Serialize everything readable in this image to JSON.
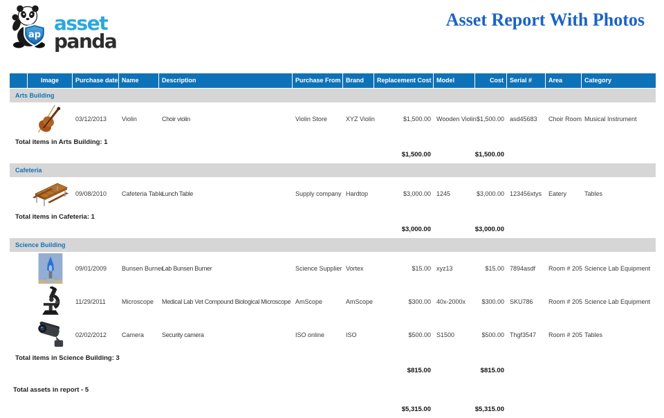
{
  "header": {
    "logo": {
      "word_top": "asset",
      "word_bottom": "panda",
      "badge": "ap"
    },
    "title": "Asset Report With Photos"
  },
  "colors": {
    "header_bar": "#0e72b8",
    "group_bar_bg": "#d6d6d6",
    "group_text": "#1273b8",
    "title_text": "#1b63c5",
    "logo_blue": "#29a8df",
    "logo_dark": "#2d2d2d"
  },
  "table": {
    "columns": [
      {
        "key": "spacer",
        "label": "",
        "align": "left"
      },
      {
        "key": "image",
        "label": "Image",
        "align": "center"
      },
      {
        "key": "purchase_date",
        "label": "Purchase date",
        "align": "left"
      },
      {
        "key": "name",
        "label": "Name",
        "align": "left"
      },
      {
        "key": "description",
        "label": "Description",
        "align": "left"
      },
      {
        "key": "purchase_from",
        "label": "Purchase From",
        "align": "left"
      },
      {
        "key": "brand",
        "label": "Brand",
        "align": "left"
      },
      {
        "key": "replacement_cost",
        "label": "Replacement Cost",
        "align": "right"
      },
      {
        "key": "model",
        "label": "Model",
        "align": "left"
      },
      {
        "key": "cost",
        "label": "Cost",
        "align": "right"
      },
      {
        "key": "serial",
        "label": "Serial #",
        "align": "left"
      },
      {
        "key": "area",
        "label": "Area",
        "align": "left"
      },
      {
        "key": "category",
        "label": "Category",
        "align": "left"
      }
    ],
    "groups": [
      {
        "name": "Arts Building",
        "rows": [
          {
            "image": "violin-photo",
            "purchase_date": "03/12/2013",
            "name": "Violin",
            "description": "Choir violin",
            "purchase_from": "Violin Store",
            "brand": "XYZ Violin",
            "replacement_cost": "$1,500.00",
            "model": "Wooden Violin",
            "cost": "$1,500.00",
            "serial": "asd45683",
            "area": "Choir Room",
            "category": "Musical Instrument"
          }
        ],
        "total_label": "Total items in Arts Building: 1",
        "subtotal_replacement_cost": "$1,500.00",
        "subtotal_cost": "$1,500.00"
      },
      {
        "name": "Cafeteria",
        "rows": [
          {
            "image": "cafeteria-table-photo",
            "purchase_date": "09/08/2010",
            "name": "Cafeteria Table",
            "description": "Lunch Table",
            "purchase_from": "Supply company",
            "brand": "Hardtop",
            "replacement_cost": "$3,000.00",
            "model": "1245",
            "cost": "$3,000.00",
            "serial": "123456xtys",
            "area": "Eatery",
            "category": "Tables"
          }
        ],
        "total_label": "Total items in Cafeteria: 1",
        "subtotal_replacement_cost": "$3,000.00",
        "subtotal_cost": "$3,000.00"
      },
      {
        "name": "Science Building",
        "rows": [
          {
            "image": "bunsen-burner-photo",
            "purchase_date": "09/01/2009",
            "name": "Bunsen Burner",
            "description": "Lab Bunsen Burner",
            "purchase_from": "Science Supplier",
            "brand": "Vortex",
            "replacement_cost": "$15.00",
            "model": "xyz13",
            "cost": "$15.00",
            "serial": "7894asdf",
            "area": "Room # 205",
            "category": "Science Lab Equipment"
          },
          {
            "image": "microscope-photo",
            "purchase_date": "11/29/2011",
            "name": "Microscope",
            "description": "Medical Lab Vet Compound Biological Microscope",
            "purchase_from": "AmScope",
            "brand": "AmScope",
            "replacement_cost": "$300.00",
            "model": "40x-2000x",
            "cost": "$300.00",
            "serial": "SKU786",
            "area": "Room # 205",
            "category": "Science Lab Equipment"
          },
          {
            "image": "security-camera-photo",
            "purchase_date": "02/02/2012",
            "name": "Camera",
            "description": "Security camera",
            "purchase_from": "ISO online",
            "brand": "ISO",
            "replacement_cost": "$500.00",
            "model": "S1500",
            "cost": "$500.00",
            "serial": "Thgf3547",
            "area": "Room # 205",
            "category": "Tables"
          }
        ],
        "total_label": "Total items in Science Building: 3",
        "subtotal_replacement_cost": "$815.00",
        "subtotal_cost": "$815.00"
      }
    ],
    "footer": {
      "total_label": "Total assets in report - 5",
      "grand_total_replacement_cost": "$5,315.00",
      "grand_total_cost": "$5,315.00"
    }
  }
}
